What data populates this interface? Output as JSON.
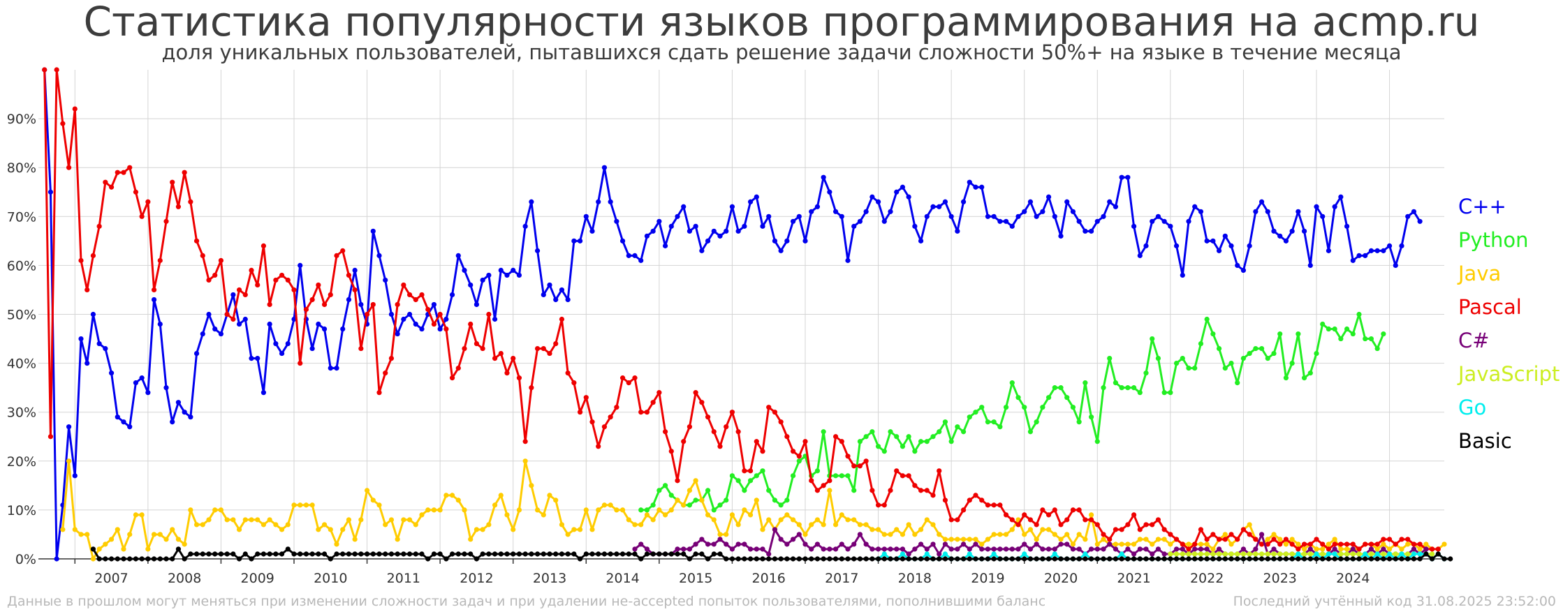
{
  "title": "Статистика популярности языков программирования на acmp.ru",
  "subtitle": "доля уникальных пользователей, пытавшихся сдать решение задачи сложности 50%+ на языке в течение месяца",
  "footer_left": "Данные в прошлом могут меняться при изменении сложности задач и при удалении не-accepted попыток пользователями, пополнившими баланс",
  "footer_right": "Последний учтённый код 31.08.2025 23:52:00",
  "chart_data": {
    "type": "line",
    "x_unit": "month",
    "x_start": "2006-08",
    "x_end": "2025-08",
    "xlim": [
      "2006-07",
      "2025-10"
    ],
    "ylim": [
      0,
      100
    ],
    "y_ticks": [
      "0%",
      "10%",
      "20%",
      "30%",
      "40%",
      "50%",
      "60%",
      "70%",
      "80%",
      "90%"
    ],
    "x_ticks": [
      "2007",
      "2008",
      "2009",
      "2010",
      "2011",
      "2012",
      "2013",
      "2014",
      "2015",
      "2016",
      "2017",
      "2018",
      "2019",
      "2020",
      "2021",
      "2022",
      "2023",
      "2024"
    ],
    "grid": true,
    "legend_position": "right",
    "series": [
      {
        "name": "C++",
        "color": "#0000ee",
        "start": "2006-08",
        "values": [
          100,
          75,
          0,
          11,
          27,
          17,
          45,
          40,
          50,
          44,
          43,
          38,
          29,
          28,
          27,
          36,
          37,
          34,
          53,
          48,
          35,
          28,
          32,
          30,
          29,
          42,
          46,
          50,
          47,
          46,
          50,
          54,
          48,
          49,
          41,
          41,
          34,
          48,
          44,
          42,
          44,
          49,
          60,
          49,
          43,
          48,
          47,
          39,
          39,
          47,
          53,
          59,
          52,
          48,
          67,
          62,
          57,
          50,
          46,
          49,
          50,
          48,
          47,
          50,
          52,
          47,
          49,
          54,
          62,
          59,
          56,
          52,
          57,
          58,
          49,
          59,
          58,
          59,
          58,
          68,
          73,
          63,
          54,
          56,
          53,
          55,
          53,
          65,
          65,
          70,
          67,
          73,
          80,
          73,
          69,
          65,
          62,
          62,
          61,
          66,
          67,
          69,
          64,
          68,
          70,
          72,
          67,
          68,
          63,
          65,
          67,
          66,
          67,
          72,
          67,
          68,
          73,
          74,
          68,
          70,
          65,
          63,
          65,
          69,
          70,
          65,
          71,
          72,
          78,
          75,
          71,
          70,
          61,
          68,
          69,
          71,
          74,
          73,
          69,
          71,
          75,
          76,
          74,
          68,
          65,
          70,
          72,
          72,
          73,
          70,
          67,
          73,
          77,
          76,
          76,
          70,
          70,
          69,
          69,
          68,
          70,
          71,
          73,
          70,
          71,
          74,
          70,
          66,
          73,
          71,
          69,
          67,
          67,
          69,
          70,
          73,
          72,
          78,
          78,
          68,
          62,
          64,
          69,
          70,
          69,
          68,
          64,
          58,
          69,
          72,
          71,
          65,
          65,
          63,
          66,
          64,
          60,
          59,
          64,
          71,
          73,
          71,
          67,
          66,
          65,
          67,
          71,
          67,
          60,
          72,
          70,
          63,
          72,
          74,
          68,
          61,
          62,
          62,
          63,
          63,
          63,
          64,
          60,
          64,
          70,
          71,
          69
        ]
      },
      {
        "name": "Python",
        "color": "#22ee22",
        "start": "2014-10",
        "values": [
          10,
          10,
          11,
          14,
          15,
          13,
          12,
          11,
          11,
          12,
          12,
          14,
          10,
          11,
          12,
          17,
          16,
          14,
          16,
          17,
          18,
          14,
          12,
          11,
          12,
          17,
          20,
          21,
          17,
          18,
          26,
          17,
          17,
          17,
          17,
          14,
          24,
          25,
          26,
          23,
          22,
          26,
          25,
          23,
          25,
          22,
          24,
          24,
          25,
          26,
          28,
          24,
          27,
          26,
          29,
          30,
          31,
          28,
          28,
          27,
          31,
          36,
          33,
          31,
          26,
          28,
          31,
          33,
          35,
          35,
          33,
          31,
          28,
          36,
          29,
          24,
          35,
          41,
          36,
          35,
          35,
          35,
          34,
          38,
          45,
          41,
          34,
          34,
          40,
          41,
          39,
          39,
          44,
          49,
          46,
          43,
          39,
          40,
          36,
          41,
          42,
          43,
          43,
          41,
          42,
          46,
          37,
          40,
          46,
          37,
          38,
          42,
          48,
          47,
          47,
          45,
          47,
          46,
          50,
          45,
          45,
          43,
          46
        ]
      },
      {
        "name": "Java",
        "color": "#ffcc00",
        "start": "2006-11",
        "values": [
          6,
          20,
          6,
          5,
          5,
          0,
          2,
          3,
          4,
          6,
          2,
          5,
          9,
          9,
          2,
          5,
          5,
          4,
          6,
          4,
          3,
          10,
          7,
          7,
          8,
          10,
          10,
          8,
          8,
          6,
          8,
          8,
          8,
          7,
          8,
          7,
          6,
          7,
          11,
          11,
          11,
          11,
          6,
          7,
          6,
          3,
          6,
          8,
          4,
          8,
          14,
          12,
          11,
          7,
          8,
          4,
          8,
          8,
          7,
          9,
          10,
          10,
          10,
          13,
          13,
          12,
          10,
          4,
          6,
          6,
          7,
          11,
          13,
          9,
          6,
          10,
          20,
          15,
          10,
          9,
          13,
          12,
          7,
          5,
          6,
          6,
          10,
          6,
          10,
          11,
          11,
          10,
          10,
          8,
          7,
          7,
          9,
          8,
          10,
          9,
          10,
          12,
          11,
          14,
          16,
          12,
          9,
          8,
          5,
          5,
          9,
          7,
          10,
          9,
          12,
          6,
          8,
          6,
          8,
          9,
          8,
          7,
          5,
          7,
          8,
          7,
          14,
          7,
          9,
          8,
          8,
          7,
          7,
          6,
          6,
          5,
          5,
          6,
          5,
          7,
          5,
          6,
          8,
          7,
          5,
          4,
          4,
          4,
          4,
          4,
          4,
          3,
          4,
          5,
          5,
          5,
          6,
          8,
          5,
          6,
          4,
          6,
          6,
          5,
          4,
          5,
          3,
          5,
          4,
          9,
          3,
          4,
          3,
          3,
          3,
          3,
          3,
          4,
          4,
          3,
          4,
          4,
          3,
          4,
          3,
          3,
          3,
          3,
          3,
          2,
          4,
          5,
          3,
          4,
          6,
          7,
          4,
          3,
          4,
          5,
          4,
          3,
          4,
          3,
          2,
          3,
          2,
          2,
          3,
          4,
          2,
          2,
          2,
          2,
          3,
          3,
          2,
          3,
          2,
          3,
          2,
          3,
          3,
          2,
          3,
          2,
          2,
          3
        ]
      },
      {
        "name": "Pascal",
        "color": "#ee0000",
        "start": "2006-08",
        "values": [
          100,
          25,
          100,
          89,
          80,
          92,
          61,
          55,
          62,
          68,
          77,
          76,
          79,
          79,
          80,
          75,
          70,
          73,
          55,
          61,
          69,
          77,
          72,
          79,
          73,
          65,
          62,
          57,
          58,
          61,
          50,
          49,
          55,
          54,
          59,
          56,
          64,
          52,
          57,
          58,
          57,
          55,
          40,
          51,
          53,
          56,
          52,
          54,
          62,
          63,
          58,
          55,
          43,
          50,
          52,
          34,
          38,
          41,
          52,
          56,
          54,
          53,
          54,
          51,
          48,
          50,
          47,
          37,
          39,
          43,
          48,
          44,
          43,
          50,
          41,
          42,
          38,
          41,
          37,
          24,
          35,
          43,
          43,
          42,
          44,
          49,
          38,
          36,
          30,
          33,
          28,
          23,
          27,
          29,
          31,
          37,
          36,
          37,
          30,
          30,
          32,
          34,
          26,
          22,
          16,
          24,
          27,
          34,
          32,
          29,
          26,
          23,
          27,
          30,
          26,
          18,
          18,
          24,
          22,
          31,
          30,
          28,
          25,
          22,
          21,
          24,
          16,
          14,
          15,
          16,
          25,
          24,
          21,
          19,
          19,
          20,
          14,
          11,
          11,
          14,
          18,
          17,
          17,
          15,
          14,
          14,
          13,
          18,
          12,
          8,
          8,
          10,
          12,
          13,
          12,
          11,
          11,
          11,
          9,
          8,
          7,
          9,
          8,
          7,
          10,
          9,
          10,
          7,
          8,
          10,
          10,
          8,
          8,
          7,
          5,
          4,
          6,
          6,
          7,
          9,
          6,
          7,
          7,
          8,
          6,
          5,
          4,
          3,
          2,
          3,
          6,
          4,
          5,
          4,
          4,
          5,
          4,
          6,
          5,
          4,
          3,
          3,
          4,
          3,
          4,
          3,
          2,
          3,
          3,
          4,
          3,
          2,
          3,
          3,
          3,
          3,
          2,
          3,
          3,
          3,
          4,
          4,
          3,
          4,
          4,
          3,
          3,
          2,
          2,
          2
        ]
      },
      {
        "name": "C#",
        "color": "#770077",
        "start": "2014-09",
        "values": [
          2,
          3,
          2,
          1,
          1,
          1,
          1,
          2,
          2,
          2,
          3,
          4,
          3,
          3,
          4,
          3,
          2,
          3,
          3,
          2,
          2,
          2,
          1,
          6,
          4,
          3,
          4,
          5,
          3,
          2,
          3,
          2,
          2,
          2,
          3,
          2,
          3,
          5,
          3,
          2,
          2,
          2,
          2,
          2,
          2,
          1,
          2,
          3,
          2,
          3,
          1,
          3,
          2,
          2,
          3,
          2,
          3,
          2,
          2,
          2,
          2,
          2,
          2,
          2,
          3,
          2,
          3,
          2,
          2,
          2,
          3,
          3,
          2,
          2,
          1,
          2,
          2,
          2,
          3,
          2,
          1,
          2,
          1,
          2,
          2,
          1,
          2,
          1,
          1,
          2,
          2,
          1,
          2,
          2,
          2,
          1,
          2,
          1,
          1,
          1,
          2,
          1,
          2,
          5,
          1,
          2,
          1,
          1,
          1,
          1,
          1,
          2,
          1,
          1,
          1,
          2,
          1,
          1,
          2,
          1,
          1,
          2,
          1,
          2,
          1,
          1,
          1,
          1,
          2,
          1,
          2
        ]
      },
      {
        "name": "JavaScript",
        "color": "#ccee22",
        "start": "2022-01",
        "values": [
          1,
          1,
          1,
          1,
          1,
          1,
          1,
          1,
          1,
          1,
          1,
          1,
          1,
          1,
          1,
          1,
          1,
          1,
          1,
          1,
          1,
          1,
          1,
          1,
          1,
          1,
          1,
          1,
          1,
          1,
          1,
          1,
          1,
          1,
          1,
          1,
          1,
          1,
          1,
          1,
          1,
          1,
          1,
          1
        ]
      },
      {
        "name": "Go",
        "color": "#00eeee",
        "start": "2018-01",
        "values": [
          0,
          1,
          0,
          0,
          1,
          0,
          0,
          0,
          1,
          0,
          0,
          1,
          0,
          0,
          0,
          1,
          0,
          0,
          0,
          1,
          0,
          0,
          0,
          0,
          1,
          0,
          0,
          0,
          0,
          1,
          0,
          0,
          0,
          0,
          1,
          0,
          0,
          0,
          0,
          0,
          1,
          0,
          0,
          0,
          0,
          0,
          0,
          0,
          0,
          0,
          0,
          0,
          0,
          0,
          0,
          0,
          0,
          0,
          0,
          0,
          0,
          0,
          0,
          0,
          0,
          0,
          0,
          0,
          0,
          1,
          0,
          0,
          1,
          0,
          1,
          1,
          0,
          0,
          0,
          0,
          1,
          0,
          1,
          0,
          1,
          0,
          1,
          0,
          1,
          1,
          1,
          0,
          1,
          0
        ]
      },
      {
        "name": "Basic",
        "color": "#000000",
        "start": "2007-04",
        "values": [
          2,
          0,
          0,
          0,
          0,
          0,
          0,
          0,
          0,
          0,
          0,
          0,
          0,
          0,
          2,
          0,
          1,
          1,
          1,
          1,
          1,
          1,
          1,
          1,
          0,
          1,
          0,
          1,
          1,
          1,
          1,
          1,
          2,
          1,
          1,
          1,
          1,
          1,
          1,
          0,
          1,
          1,
          1,
          1,
          1,
          1,
          1,
          1,
          1,
          1,
          1,
          1,
          1,
          1,
          1,
          0,
          1,
          1,
          0,
          1,
          1,
          1,
          1,
          0,
          1,
          1,
          1,
          1,
          1,
          1,
          1,
          1,
          1,
          1,
          1,
          1,
          1,
          1,
          1,
          1,
          0,
          1,
          1,
          1,
          1,
          1,
          1,
          1,
          1,
          1,
          0,
          1,
          1,
          1,
          1,
          1,
          1,
          1,
          0,
          1,
          1,
          0,
          1,
          1,
          0,
          0,
          0,
          0,
          0,
          0,
          0,
          0,
          0,
          0,
          0,
          0,
          0,
          0,
          0,
          0,
          0,
          0,
          0,
          0,
          0,
          0,
          0,
          0,
          0,
          0,
          0,
          0,
          0,
          0,
          0,
          0,
          0,
          0,
          0,
          0,
          0,
          0,
          0,
          0,
          0,
          0,
          0,
          0,
          0,
          0,
          0,
          0,
          0,
          0,
          0,
          0,
          0,
          0,
          0,
          0,
          0,
          0,
          0,
          0,
          0,
          0,
          0,
          0,
          0,
          0,
          0,
          0,
          0,
          0,
          0,
          0,
          0,
          0,
          0,
          0,
          0,
          0,
          0,
          0,
          0,
          0,
          0,
          0,
          0,
          0,
          0,
          0,
          0,
          0,
          0,
          0,
          0,
          0,
          0,
          0,
          0,
          0,
          0,
          0,
          0,
          0,
          0,
          0,
          0,
          0,
          0,
          0,
          0,
          0,
          0,
          0,
          0,
          0,
          0,
          1,
          0,
          1,
          0,
          0
        ]
      }
    ]
  }
}
